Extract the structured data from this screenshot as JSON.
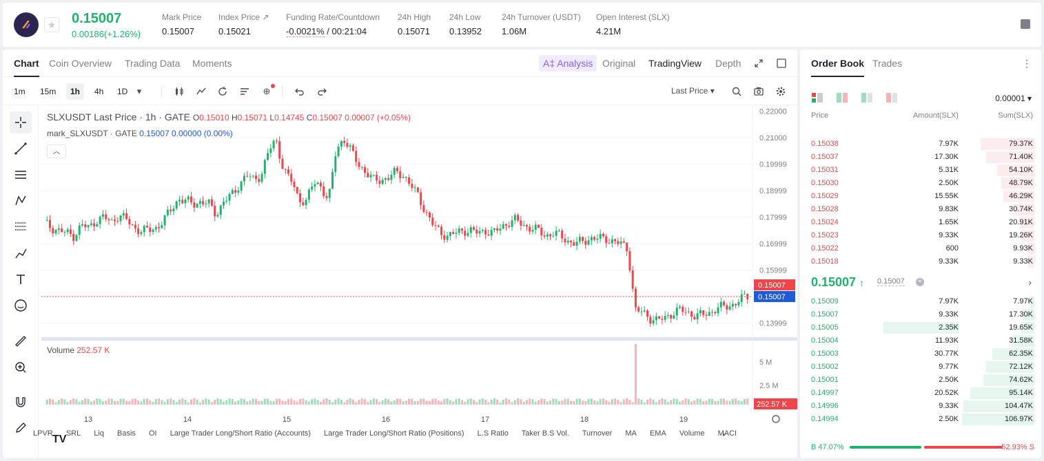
{
  "ticker": {
    "last_price": "0.15007",
    "change": "0.00186(+1.26%)",
    "stats": [
      {
        "label": "Mark Price",
        "value": "0.15007"
      },
      {
        "label": "Index Price ↗",
        "value": "0.15021"
      },
      {
        "label": "Funding Rate/Countdown",
        "value_neg": "-0.0021%",
        "value": "/ 00:21:04"
      },
      {
        "label": "24h High",
        "value": "0.15071"
      },
      {
        "label": "24h Low",
        "value": "0.13952"
      },
      {
        "label": "24h Turnover (USDT)",
        "value": "1.06M"
      },
      {
        "label": "Open Interest (SLX)",
        "value": "4.21M"
      }
    ]
  },
  "chart_tabs": [
    "Chart",
    "Coin Overview",
    "Trading Data",
    "Moments"
  ],
  "views": {
    "ai": "A‡ Analysis",
    "original": "Original",
    "tradingview": "TradingView",
    "depth": "Depth"
  },
  "intervals": [
    "1m",
    "15m",
    "1h",
    "4h",
    "1D"
  ],
  "price_select": "Last Price",
  "legend": {
    "title": "SLXUSDT Last Price · 1h · GATE",
    "o": "O",
    "o_val": "0.15010",
    "h": "H",
    "h_val": "0.15071",
    "l": "L",
    "l_val": "0.14745",
    "c": "C",
    "c_val": "0.15007",
    "chg": "0.00007 (+0.05%)",
    "mark_label": "mark_SLXUSDT · GATE",
    "mark_val": "0.15007",
    "mark_chg": "0.00000",
    "mark_pct": "(0.00%)"
  },
  "volume_legend": {
    "label": "Volume",
    "value": "252.57 K"
  },
  "price_axis": [
    "0.22000",
    "0.21000",
    "0.19999",
    "0.18999",
    "0.17999",
    "0.16999",
    "0.15999",
    "0.13999"
  ],
  "price_tags": {
    "last": "0.15007",
    "mark": "0.15007"
  },
  "volume_axis": [
    "5 M",
    "2.5 M",
    "252.57 K"
  ],
  "time_axis": [
    "13",
    "14",
    "15",
    "16",
    "17",
    "18",
    "19"
  ],
  "indicators": [
    "LPVR",
    "SRL",
    "Liq",
    "Basis",
    "OI",
    "Large Trader Long/Short Ratio (Accounts)",
    "Large Trader Long/Short Ratio (Positions)",
    "L.S Ratio",
    "Taker B.S Vol.",
    "Turnover",
    "MA",
    "EMA",
    "Volume",
    "MACD"
  ],
  "chart_data": {
    "type": "candlestick",
    "title": "SLXUSDT Last Price · 1h · GATE",
    "ylim": [
      0.135,
      0.222
    ],
    "x_labels": [
      "13",
      "14",
      "15",
      "16",
      "17",
      "18",
      "19"
    ],
    "close_path": [
      0.178,
      0.176,
      0.175,
      0.174,
      0.173,
      0.177,
      0.176,
      0.179,
      0.18,
      0.178,
      0.181,
      0.179,
      0.176,
      0.175,
      0.175,
      0.176,
      0.179,
      0.183,
      0.187,
      0.186,
      0.185,
      0.186,
      0.185,
      0.181,
      0.186,
      0.188,
      0.192,
      0.196,
      0.194,
      0.196,
      0.205,
      0.209,
      0.198,
      0.194,
      0.187,
      0.186,
      0.193,
      0.192,
      0.186,
      0.205,
      0.21,
      0.205,
      0.2,
      0.197,
      0.194,
      0.194,
      0.195,
      0.197,
      0.196,
      0.192,
      0.188,
      0.182,
      0.177,
      0.174,
      0.173,
      0.174,
      0.175,
      0.175,
      0.174,
      0.175,
      0.174,
      0.176,
      0.178,
      0.179,
      0.177,
      0.176,
      0.175,
      0.173,
      0.174,
      0.173,
      0.171,
      0.17,
      0.171,
      0.172,
      0.172,
      0.172,
      0.171,
      0.17,
      0.168,
      0.145,
      0.144,
      0.142,
      0.141,
      0.142,
      0.144,
      0.145,
      0.144,
      0.143,
      0.143,
      0.144,
      0.146,
      0.146,
      0.147,
      0.149,
      0.15
    ]
  },
  "orderbook": {
    "tabs": [
      "Order Book",
      "Trades"
    ],
    "precision": "0.00001",
    "headers": {
      "price": "Price",
      "amount": "Amount(SLX)",
      "sum": "Sum(SLX)"
    },
    "asks": [
      {
        "price": "0.15038",
        "amount": "7.97K",
        "sum": "79.37K",
        "depth": 0.74
      },
      {
        "price": "0.15037",
        "amount": "17.30K",
        "sum": "71.40K",
        "depth": 0.67
      },
      {
        "price": "0.15031",
        "amount": "5.31K",
        "sum": "54.10K",
        "depth": 0.51
      },
      {
        "price": "0.15030",
        "amount": "2.50K",
        "sum": "48.79K",
        "depth": 0.46
      },
      {
        "price": "0.15029",
        "amount": "15.55K",
        "sum": "46.29K",
        "depth": 0.43
      },
      {
        "price": "0.15028",
        "amount": "9.83K",
        "sum": "30.74K",
        "depth": 0.29
      },
      {
        "price": "0.15024",
        "amount": "1.65K",
        "sum": "20.91K",
        "depth": 0.2
      },
      {
        "price": "0.15023",
        "amount": "9.33K",
        "sum": "19.26K",
        "depth": 0.18
      },
      {
        "price": "0.15022",
        "amount": "600",
        "sum": "9.93K",
        "depth": 0.09
      },
      {
        "price": "0.15018",
        "amount": "9.33K",
        "sum": "9.33K",
        "depth": 0.09
      }
    ],
    "mid": {
      "price": "0.15007",
      "arrow": "↑",
      "mark": "0.15007"
    },
    "bids": [
      {
        "price": "0.15009",
        "amount": "7.97K",
        "sum": "7.97K",
        "depth": 0.07
      },
      {
        "price": "0.15007",
        "amount": "9.33K",
        "sum": "17.30K",
        "depth": 0.16
      },
      {
        "price": "0.15005",
        "amount": "2.35K",
        "sum": "19.65K",
        "depth": 0.18,
        "highlight": true
      },
      {
        "price": "0.15004",
        "amount": "11.93K",
        "sum": "31.58K",
        "depth": 0.3
      },
      {
        "price": "0.15003",
        "amount": "30.77K",
        "sum": "62.35K",
        "depth": 0.58
      },
      {
        "price": "0.15002",
        "amount": "9.77K",
        "sum": "72.12K",
        "depth": 0.67
      },
      {
        "price": "0.15001",
        "amount": "2.50K",
        "sum": "74.62K",
        "depth": 0.7
      },
      {
        "price": "0.14997",
        "amount": "20.52K",
        "sum": "95.14K",
        "depth": 0.89
      },
      {
        "price": "0.14996",
        "amount": "9.33K",
        "sum": "104.47K",
        "depth": 0.98
      },
      {
        "price": "0.14994",
        "amount": "2.50K",
        "sum": "106.97K",
        "depth": 1.0
      }
    ],
    "buy_ratio": "B 47.07%",
    "sell_ratio": "52.93% S",
    "buy_frac": 0.4707
  },
  "colors": {
    "up": "#20b26c",
    "down": "#ef454a",
    "accent": "#8b5cf6",
    "mark": "#1e5bd8"
  }
}
